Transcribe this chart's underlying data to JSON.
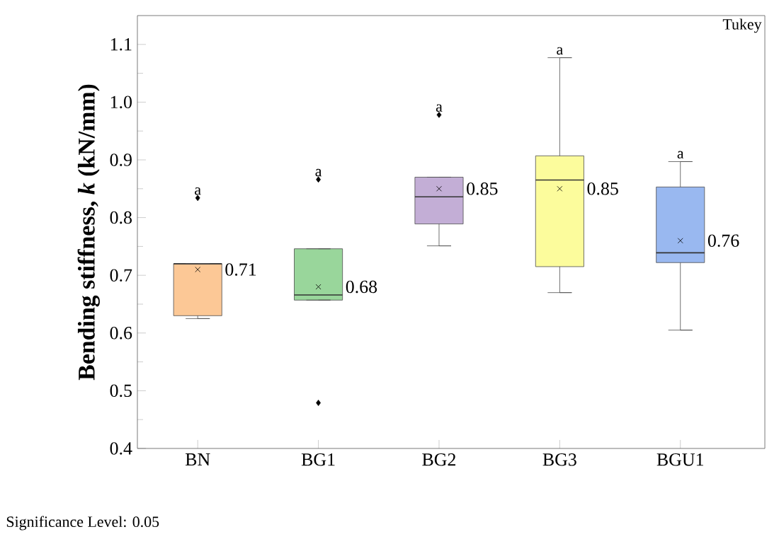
{
  "chart_data": {
    "type": "box",
    "ylabel": "Bending stiffness, *k* (kN/mm)",
    "categories": [
      "BN",
      "BG1",
      "BG2",
      "BG3",
      "BGU1"
    ],
    "colors": [
      "#fcc896",
      "#99d69b",
      "#c3aed6",
      "#fcfc9c",
      "#99b8f0"
    ],
    "boxes": [
      {
        "low": 0.625,
        "q1": 0.63,
        "median": 0.72,
        "q3": 0.72,
        "high": 0.72,
        "mean": 0.71,
        "outliers": [
          0.834
        ]
      },
      {
        "low": 0.657,
        "q1": 0.657,
        "median": 0.666,
        "q3": 0.746,
        "high": 0.746,
        "mean": 0.68,
        "outliers": [
          0.866,
          0.479
        ]
      },
      {
        "low": 0.751,
        "q1": 0.789,
        "median": 0.836,
        "q3": 0.87,
        "high": 0.87,
        "mean": 0.85,
        "outliers": [
          0.978
        ]
      },
      {
        "low": 0.67,
        "q1": 0.715,
        "median": 0.865,
        "q3": 0.907,
        "high": 1.077,
        "mean": 0.85
      },
      {
        "low": 0.605,
        "q1": 0.722,
        "median": 0.739,
        "q3": 0.853,
        "high": 0.897,
        "mean": 0.76
      }
    ],
    "ylim": [
      0.4,
      1.15
    ],
    "yticks": [
      0.4,
      0.5,
      0.6,
      0.7,
      0.8,
      0.9,
      {
        "value": 1.0,
        "label": "1.0"
      },
      1.1
    ],
    "grid": false,
    "annotations": [
      "0.71",
      "0.68",
      "0.85",
      "0.85",
      "0.76",
      "a",
      "a",
      "a",
      "a",
      "a",
      "Tukey",
      "Significance Level: 0.05"
    ]
  }
}
